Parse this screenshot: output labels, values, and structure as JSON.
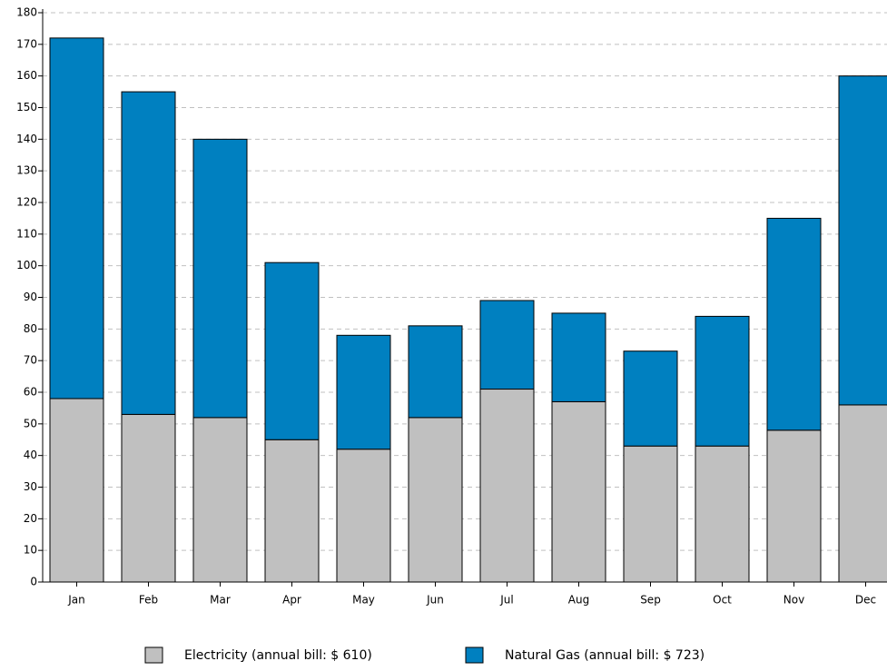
{
  "chart_data": {
    "type": "stacked-bar",
    "categories": [
      "Jan",
      "Feb",
      "Mar",
      "Apr",
      "May",
      "Jun",
      "Jul",
      "Aug",
      "Sep",
      "Oct",
      "Nov",
      "Dec"
    ],
    "series": [
      {
        "name": "Electricity (annual bill: $ 610)",
        "color": "#c0c0c0",
        "values": [
          58,
          53,
          52,
          45,
          42,
          52,
          61,
          57,
          43,
          43,
          48,
          56
        ]
      },
      {
        "name": "Natural Gas (annual bill: $ 723)",
        "color": "#0080c0",
        "values": [
          114,
          102,
          88,
          56,
          36,
          29,
          28,
          28,
          30,
          41,
          67,
          104
        ]
      }
    ],
    "ylim": [
      0,
      180
    ],
    "yticks": [
      0,
      10,
      20,
      30,
      40,
      50,
      60,
      70,
      80,
      90,
      100,
      110,
      120,
      130,
      140,
      150,
      160,
      170,
      180
    ],
    "grid": true
  }
}
